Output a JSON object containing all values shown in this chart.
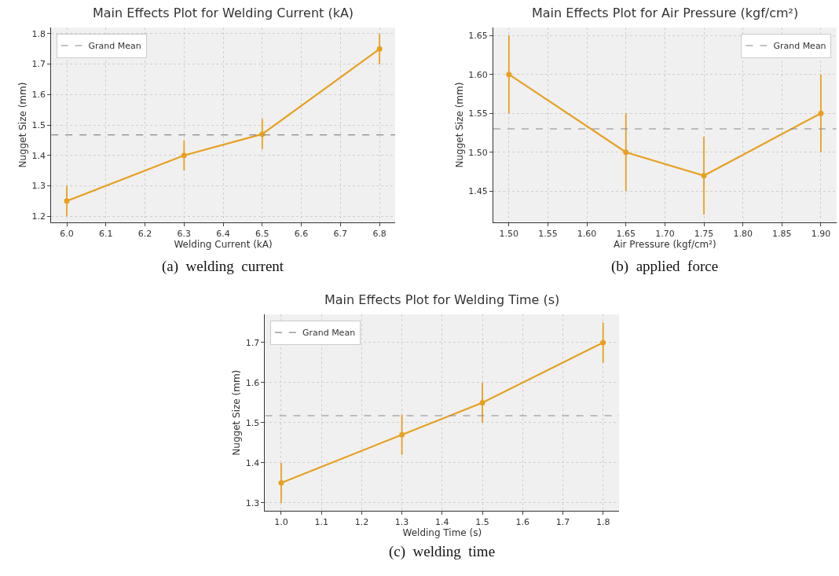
{
  "chart_data": [
    {
      "type": "line",
      "title": "Main Effects Plot for Welding Current (kA)",
      "xlabel": "Welding Current (kA)",
      "ylabel": "Nugget Size (mm)",
      "x": [
        6.0,
        6.3,
        6.5,
        6.8
      ],
      "series": [
        {
          "color": "#e8a020",
          "values": [
            1.25,
            1.4,
            1.47,
            1.75
          ],
          "errors": [
            0.05,
            0.05,
            0.05,
            0.05
          ]
        }
      ],
      "xlim": [
        5.96,
        6.84
      ],
      "ylim": [
        1.18,
        1.82
      ],
      "xticks": [
        {
          "value": 6.0,
          "label": "6.0"
        },
        6.1,
        6.2,
        6.3,
        6.4,
        6.5,
        6.6,
        6.7,
        6.8
      ],
      "yticks": [
        1.2,
        1.3,
        1.4,
        1.5,
        1.6,
        1.7,
        1.8
      ],
      "ref_lines": [
        {
          "axis": "y",
          "value": 1.4675,
          "label": "Grand Mean",
          "color": "#888888",
          "line_style": "dashed"
        }
      ],
      "marker": "circle",
      "line_style": "solid",
      "grid": true,
      "legend": "top left",
      "annotations": [
        "(a)  welding  current"
      ]
    },
    {
      "type": "line",
      "title": "Main Effects Plot for Air Pressure (kgf/cm²)",
      "xlabel": "Air Pressure (kgf/cm²)",
      "ylabel": "Nugget Size (mm)",
      "x": [
        1.5,
        1.65,
        1.75,
        1.9
      ],
      "series": [
        {
          "color": "#e8a020",
          "values": [
            1.6,
            1.5,
            1.47,
            1.55
          ],
          "errors": [
            0.05,
            0.05,
            0.05,
            0.05
          ]
        }
      ],
      "xlim": [
        1.48,
        1.92
      ],
      "ylim": [
        1.41,
        1.66
      ],
      "xticks": [
        {
          "value": 1.5,
          "label": "1.50"
        },
        1.55,
        {
          "value": 1.6,
          "label": "1.60"
        },
        1.65,
        {
          "value": 1.7,
          "label": "1.70"
        },
        1.75,
        {
          "value": 1.8,
          "label": "1.80"
        },
        1.85,
        {
          "value": 1.9,
          "label": "1.90"
        }
      ],
      "yticks": [
        1.45,
        {
          "value": 1.5,
          "label": "1.50"
        },
        1.55,
        {
          "value": 1.6,
          "label": "1.60"
        },
        1.65
      ],
      "ref_lines": [
        {
          "axis": "y",
          "value": 1.53,
          "label": "Grand Mean",
          "color": "#888888",
          "line_style": "dashed"
        }
      ],
      "marker": "circle",
      "line_style": "solid",
      "grid": true,
      "legend": "top right",
      "annotations": [
        "(b)  applied  force"
      ]
    },
    {
      "type": "line",
      "title": "Main Effects Plot for Welding Time (s)",
      "xlabel": "Welding Time (s)",
      "ylabel": "Nugget Size (mm)",
      "x": [
        1.0,
        1.3,
        1.5,
        1.8
      ],
      "series": [
        {
          "color": "#e8a020",
          "values": [
            1.35,
            1.47,
            1.55,
            1.7
          ],
          "errors": [
            0.05,
            0.05,
            0.05,
            0.05
          ]
        }
      ],
      "xlim": [
        0.96,
        1.84
      ],
      "ylim": [
        1.28,
        1.77
      ],
      "xticks": [
        {
          "value": 1.0,
          "label": "1.0"
        },
        1.1,
        1.2,
        1.3,
        1.4,
        1.5,
        1.6,
        1.7,
        1.8
      ],
      "yticks": [
        1.3,
        1.4,
        1.5,
        1.6,
        1.7
      ],
      "ref_lines": [
        {
          "axis": "y",
          "value": 1.5175,
          "label": "Grand Mean",
          "color": "#888888",
          "line_style": "dashed"
        }
      ],
      "marker": "circle",
      "line_style": "solid",
      "grid": true,
      "legend": "top left",
      "annotations": [
        "(c)  welding  time"
      ]
    }
  ]
}
